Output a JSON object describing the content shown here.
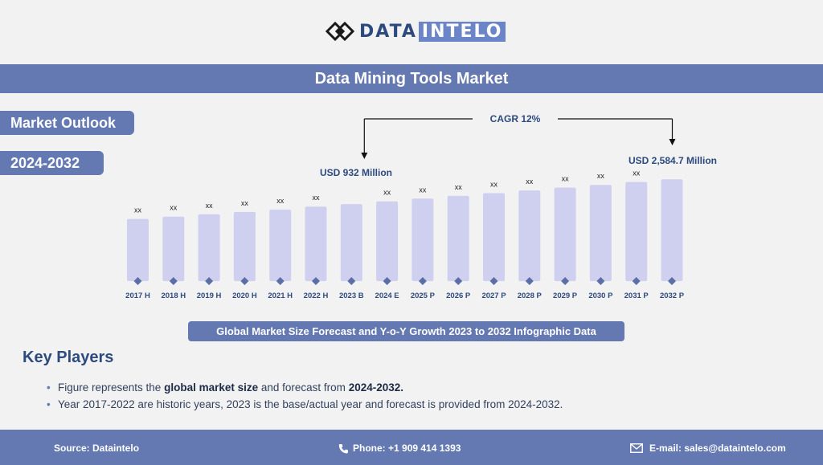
{
  "brand": {
    "part1": "DATA",
    "part2": "INTELO"
  },
  "title": "Data Mining Tools Market",
  "tags": {
    "outlook": "Market Outlook",
    "years": "2024-2032"
  },
  "chart_data": {
    "type": "bar",
    "categories": [
      "2017 H",
      "2018 H",
      "2019 H",
      "2020 H",
      "2021 H",
      "2022 H",
      "2023 B",
      "2024 E",
      "2025 P",
      "2026 P",
      "2027 P",
      "2028 P",
      "2029 P",
      "2030 P",
      "2031 P",
      "2032 P"
    ],
    "values": [
      476,
      494,
      512,
      530,
      548,
      571,
      590,
      611,
      632,
      653,
      674,
      695,
      716,
      737,
      759,
      780
    ],
    "value_labels": [
      "xx",
      "xx",
      "xx",
      "xx",
      "xx",
      "xx",
      "",
      "xx",
      "xx",
      "xx",
      "xx",
      "xx",
      "xx",
      "xx",
      "xx",
      ""
    ],
    "callouts": {
      "start": "USD 932 Million",
      "end": "USD 2,584.7 Million",
      "cagr": "CAGR 12%"
    },
    "colors": {
      "bar": "#cfd0ef",
      "marker": "#5b6fa6",
      "text": "#2d4a7e"
    },
    "ylim": [
      0,
      800
    ]
  },
  "chart_subtitle": "Global Market Size Forecast and Y-o-Y Growth 2023 to 2032 Infographic Data",
  "key_players": {
    "heading": "Key Players",
    "note1": {
      "pre": "Figure represents the ",
      "b1": "global market size",
      "mid": " and forecast from ",
      "b2": "2024-2032."
    },
    "note2": "Year 2017-2022 are historic years, 2023 is the base/actual year and forecast is provided from 2024-2032."
  },
  "footer": {
    "source": "Source: Dataintelo",
    "phone": "Phone: +1 909 414 1393",
    "email": "E-mail: sales@dataintelo.com"
  }
}
